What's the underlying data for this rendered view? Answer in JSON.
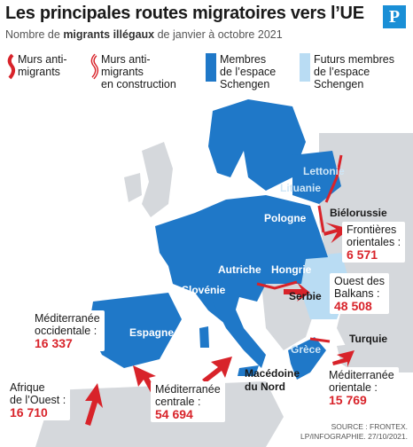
{
  "title": "Les principales routes migratoires vers l’UE",
  "subtitle_prefix": "Nombre de ",
  "subtitle_bold": "migrants illégaux",
  "subtitle_suffix": " de janvier à octobre 2021",
  "logo_letter": "P",
  "legend": [
    {
      "label_1": "Murs anti-",
      "label_2": "migrants",
      "label_3": ""
    },
    {
      "label_1": "Murs anti-",
      "label_2": "migrants",
      "label_3": "en construction"
    },
    {
      "label_1": "Membres",
      "label_2": "de l’espace",
      "label_3": "Schengen"
    },
    {
      "label_1": "Futurs membres",
      "label_2": "de l’espace",
      "label_3": "Schengen"
    }
  ],
  "colors": {
    "schengen": "#1f78c8",
    "future_schengen": "#b9dcf3",
    "non_member": "#d5d8dc",
    "wall": "#d8232a",
    "arrow": "#d8232a"
  },
  "country_labels": {
    "lettonie": "Lettonie",
    "lituanie": "Lituanie",
    "pologne": "Pologne",
    "bielorussie": "Biélorussie",
    "autriche": "Autriche",
    "hongrie": "Hongrie",
    "slovenie": "Slovénie",
    "serbie": "Serbie",
    "espagne": "Espagne",
    "macedoine": "Macédoine",
    "macedoine_2": "du Nord",
    "grece": "Grèce",
    "turquie": "Turquie"
  },
  "routes": [
    {
      "name_1": "Frontières",
      "name_2": "orientales :",
      "value": "6 571"
    },
    {
      "name_1": "Ouest des",
      "name_2": "Balkans :",
      "value": "48 508"
    },
    {
      "name_1": "Méditerranée",
      "name_2": "occidentale :",
      "value": "16 337"
    },
    {
      "name_1": "Afrique",
      "name_2": "de l’Ouest :",
      "value": "16 710"
    },
    {
      "name_1": "Méditerranée",
      "name_2": "centrale :",
      "value": "54 694"
    },
    {
      "name_1": "Méditerranée",
      "name_2": "orientale :",
      "value": "15 769"
    }
  ],
  "source_1": "SOURCE : FRONTEX.",
  "source_2": "LP/INFOGRAPHIE. 27/10/2021."
}
